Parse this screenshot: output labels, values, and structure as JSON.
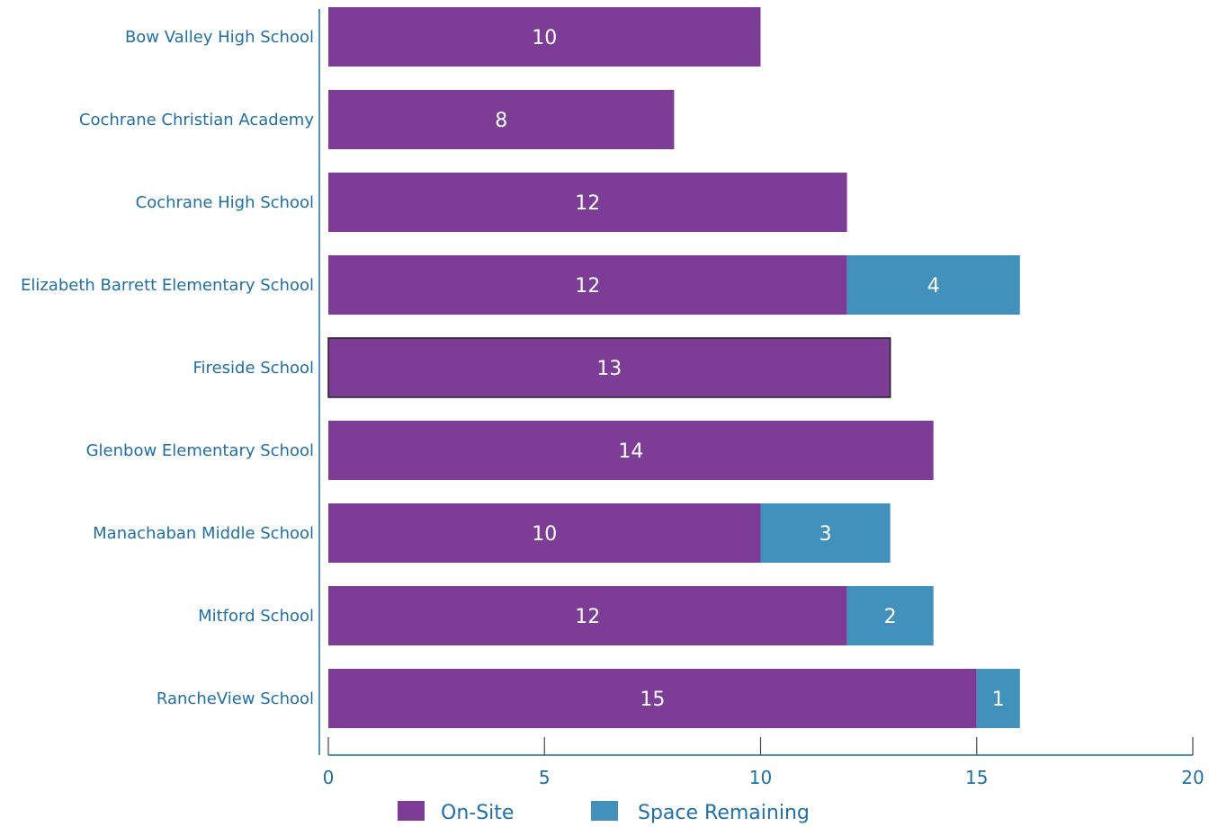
{
  "chart_data": {
    "type": "bar",
    "orientation": "horizontal",
    "stacked": true,
    "categories": [
      "Bow Valley High School",
      "Cochrane Christian Academy",
      "Cochrane High School",
      "Elizabeth Barrett Elementary School",
      "Fireside School",
      "Glenbow Elementary School",
      "Manachaban Middle School",
      "Mitford School",
      "RancheView School"
    ],
    "series": [
      {
        "name": "On-Site",
        "color": "#7d3d96",
        "values": [
          10,
          8,
          12,
          12,
          13,
          14,
          10,
          12,
          15
        ]
      },
      {
        "name": "Space Remaining",
        "color": "#4291bd",
        "values": [
          null,
          null,
          null,
          4,
          null,
          null,
          3,
          2,
          1
        ]
      }
    ],
    "xlim": [
      0,
      20
    ],
    "xticks": [
      "0",
      "5",
      "10",
      "15",
      "20"
    ],
    "title": "",
    "xlabel": "",
    "ylabel": "",
    "grid": false,
    "legend_position": "bottom",
    "axis_color": "#1f6fa8",
    "label_color": "#1f6fa8",
    "highlighted_category": "Fireside School"
  }
}
